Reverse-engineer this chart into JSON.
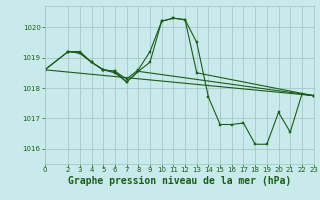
{
  "background_color": "#c8eaea",
  "grid_color": "#a8c8c8",
  "line_color": "#1a5c1a",
  "marker_color": "#1a5c1a",
  "xlabel": "Graphe pression niveau de la mer (hPa)",
  "xlabel_fontsize": 7,
  "xlim": [
    0,
    23
  ],
  "ylim": [
    1015.5,
    1020.7
  ],
  "yticks": [
    1016,
    1017,
    1018,
    1019,
    1020
  ],
  "xticks": [
    0,
    2,
    3,
    4,
    5,
    6,
    7,
    8,
    9,
    10,
    11,
    12,
    13,
    14,
    15,
    16,
    17,
    18,
    19,
    20,
    21,
    22,
    23
  ],
  "series": [
    {
      "x": [
        0,
        2,
        3,
        4,
        5,
        6,
        7,
        8,
        9,
        10,
        11,
        12,
        13,
        14,
        15,
        16,
        17,
        18,
        19,
        20,
        21,
        22,
        23
      ],
      "y": [
        1018.6,
        1019.2,
        1019.2,
        1018.85,
        1018.6,
        1018.55,
        1018.3,
        1018.6,
        1019.2,
        1020.2,
        1020.3,
        1020.25,
        1019.5,
        1017.7,
        1016.8,
        1016.8,
        1016.85,
        1016.15,
        1016.15,
        1017.2,
        1016.55,
        1017.8,
        1017.75
      ]
    },
    {
      "x": [
        2,
        3,
        4,
        5,
        6,
        7,
        8,
        9,
        10,
        11,
        12,
        13,
        23
      ],
      "y": [
        1019.2,
        1019.15,
        1018.85,
        1018.6,
        1018.5,
        1018.2,
        1018.55,
        1018.85,
        1020.2,
        1020.3,
        1020.25,
        1018.5,
        1017.75
      ]
    },
    {
      "x": [
        0,
        2,
        3,
        4,
        5,
        6,
        7,
        8,
        23
      ],
      "y": [
        1018.6,
        1019.2,
        1019.15,
        1018.85,
        1018.6,
        1018.55,
        1018.2,
        1018.55,
        1017.75
      ]
    },
    {
      "x": [
        0,
        23
      ],
      "y": [
        1018.6,
        1017.75
      ]
    }
  ]
}
